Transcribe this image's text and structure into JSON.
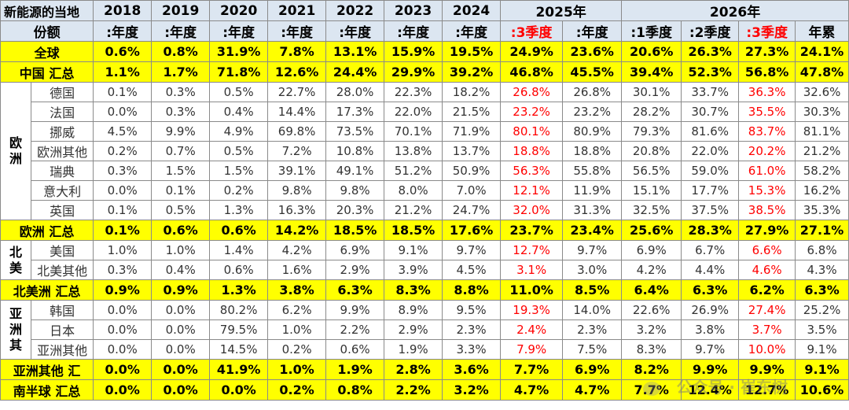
{
  "header": {
    "corner_line1": "新能源的当地",
    "corner_line2": "份额",
    "years": [
      "2018",
      "2019",
      "2020",
      "2021",
      "2022",
      "2023",
      "2024"
    ],
    "year_sub": ":年度",
    "y2025": "2025年",
    "y2026": "2026年",
    "sub2025": [
      ":3季度",
      ":年度"
    ],
    "sub2026": [
      ":1季度",
      ":2季度",
      ":3季度",
      "年累"
    ]
  },
  "regions": {
    "europe": "欧洲",
    "north_america": "北美",
    "asia": "亚洲其"
  },
  "rows": {
    "global": {
      "label": "全球",
      "values": [
        "0.6%",
        "0.8%",
        "31.9%",
        "7.8%",
        "13.1%",
        "15.9%",
        "19.5%",
        "24.9%",
        "23.6%",
        "20.6%",
        "26.3%",
        "27.3%",
        "24.1%"
      ]
    },
    "china": {
      "label": "中国 汇总",
      "values": [
        "1.1%",
        "1.7%",
        "71.8%",
        "12.6%",
        "24.4%",
        "29.9%",
        "39.2%",
        "46.8%",
        "45.5%",
        "39.4%",
        "52.3%",
        "56.8%",
        "47.8%"
      ]
    },
    "germany": {
      "label": "德国",
      "values": [
        "0.1%",
        "0.3%",
        "0.5%",
        "22.7%",
        "28.0%",
        "22.3%",
        "18.2%",
        "26.8%",
        "26.8%",
        "30.1%",
        "33.7%",
        "36.3%",
        "32.6%"
      ]
    },
    "france": {
      "label": "法国",
      "values": [
        "0.0%",
        "0.3%",
        "0.4%",
        "14.4%",
        "17.3%",
        "22.0%",
        "21.5%",
        "23.2%",
        "23.2%",
        "28.2%",
        "30.7%",
        "35.5%",
        "30.3%"
      ]
    },
    "norway": {
      "label": "挪威",
      "values": [
        "4.5%",
        "9.9%",
        "4.9%",
        "69.8%",
        "73.5%",
        "70.1%",
        "71.9%",
        "80.1%",
        "80.9%",
        "79.3%",
        "81.6%",
        "83.7%",
        "81.1%"
      ]
    },
    "europe_other": {
      "label": "欧洲其他",
      "values": [
        "0.2%",
        "0.7%",
        "0.5%",
        "7.2%",
        "10.8%",
        "13.8%",
        "13.7%",
        "18.8%",
        "18.8%",
        "20.8%",
        "22.0%",
        "20.2%",
        "21.2%"
      ]
    },
    "sweden": {
      "label": "瑞典",
      "values": [
        "0.3%",
        "1.5%",
        "1.5%",
        "39.1%",
        "49.1%",
        "51.2%",
        "50.9%",
        "56.3%",
        "55.8%",
        "56.5%",
        "59.0%",
        "61.0%",
        "58.2%"
      ]
    },
    "italy": {
      "label": "意大利",
      "values": [
        "0.0%",
        "0.1%",
        "0.2%",
        "9.8%",
        "9.8%",
        "8.0%",
        "7.0%",
        "12.1%",
        "11.9%",
        "15.1%",
        "17.7%",
        "15.3%",
        "16.2%"
      ]
    },
    "uk": {
      "label": "英国",
      "values": [
        "0.1%",
        "0.5%",
        "1.3%",
        "16.3%",
        "20.3%",
        "21.2%",
        "24.7%",
        "32.0%",
        "31.3%",
        "32.5%",
        "37.5%",
        "38.5%",
        "35.3%"
      ]
    },
    "europe_sum": {
      "label": "欧洲 汇总",
      "values": [
        "0.1%",
        "0.6%",
        "0.6%",
        "14.2%",
        "18.5%",
        "18.5%",
        "17.6%",
        "23.7%",
        "23.4%",
        "25.6%",
        "28.3%",
        "27.9%",
        "27.1%"
      ]
    },
    "usa": {
      "label": "美国",
      "values": [
        "1.0%",
        "1.0%",
        "1.4%",
        "4.2%",
        "6.9%",
        "9.1%",
        "9.7%",
        "12.7%",
        "9.7%",
        "6.9%",
        "6.7%",
        "6.6%",
        "6.8%"
      ]
    },
    "na_other": {
      "label": "北美其他",
      "values": [
        "0.3%",
        "0.4%",
        "0.6%",
        "1.6%",
        "2.9%",
        "3.9%",
        "4.5%",
        "3.1%",
        "3.0%",
        "4.2%",
        "4.4%",
        "4.6%",
        "4.3%"
      ]
    },
    "na_sum": {
      "label": "北美洲 汇总",
      "values": [
        "0.9%",
        "0.9%",
        "1.3%",
        "3.8%",
        "6.3%",
        "8.3%",
        "8.8%",
        "11.0%",
        "8.5%",
        "6.4%",
        "6.3%",
        "6.2%",
        "6.3%"
      ]
    },
    "korea": {
      "label": "韩国",
      "values": [
        "0.0%",
        "0.0%",
        "80.2%",
        "6.2%",
        "9.9%",
        "8.9%",
        "9.5%",
        "19.3%",
        "14.0%",
        "22.6%",
        "26.9%",
        "27.4%",
        "25.2%"
      ]
    },
    "japan": {
      "label": "日本",
      "values": [
        "0.0%",
        "0.0%",
        "79.5%",
        "1.0%",
        "2.2%",
        "2.9%",
        "2.3%",
        "2.4%",
        "2.3%",
        "3.2%",
        "3.8%",
        "3.7%",
        "3.5%"
      ]
    },
    "asia_other": {
      "label": "亚洲其他",
      "values": [
        "0.0%",
        "0.0%",
        "14.5%",
        "0.2%",
        "0.6%",
        "1.9%",
        "3.3%",
        "7.9%",
        "7.5%",
        "8.3%",
        "9.7%",
        "10.0%",
        "9.1%"
      ]
    },
    "asia_other_sum": {
      "label": "亚洲其他 汇",
      "values": [
        "0.0%",
        "0.0%",
        "41.9%",
        "1.0%",
        "1.9%",
        "2.8%",
        "3.6%",
        "7.7%",
        "6.9%",
        "8.2%",
        "9.9%",
        "9.9%",
        "9.1%"
      ]
    },
    "south_sum": {
      "label": "南半球 汇总",
      "values": [
        "0.0%",
        "0.0%",
        "0.0%",
        "0.2%",
        "0.8%",
        "2.2%",
        "3.2%",
        "4.7%",
        "4.7%",
        "7.7%",
        "12.4%",
        "12.7%",
        "10.6%"
      ]
    }
  },
  "watermark": "公众号 · 崔东树"
}
